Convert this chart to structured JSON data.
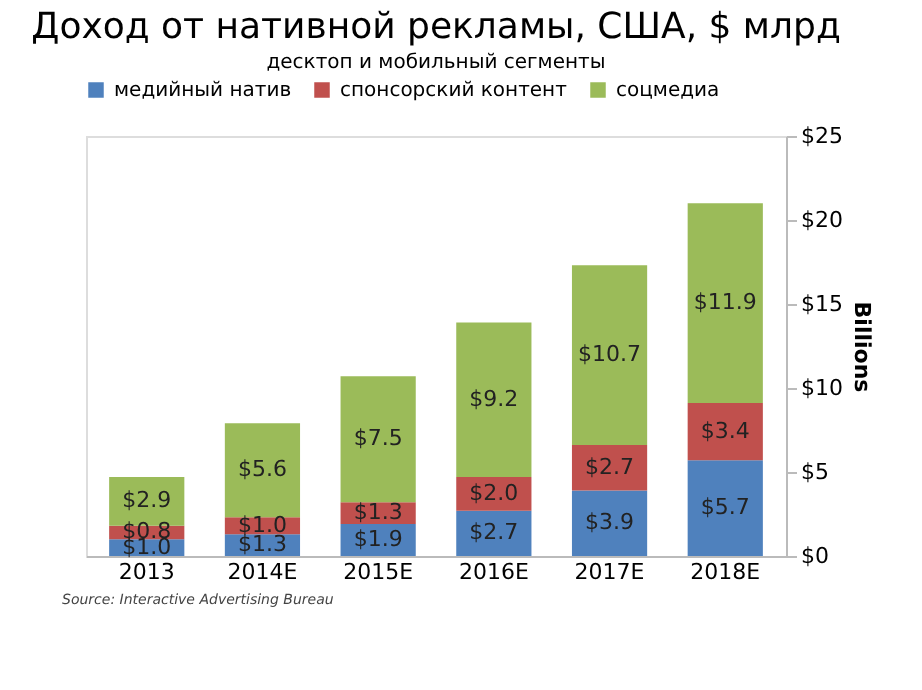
{
  "chart_data": {
    "type": "bar",
    "stacked": true,
    "title": "Доход от нативной рекламы, США, $ млрд",
    "subtitle": "десктоп и мобильный сегменты",
    "ylabel": "Billions",
    "categories": [
      "2013",
      "2014E",
      "2015E",
      "2016E",
      "2017E",
      "2018E"
    ],
    "series": [
      {
        "name": "медийный натив",
        "color": "#4f81bd",
        "values": [
          1.0,
          1.3,
          1.9,
          2.7,
          3.9,
          5.7
        ]
      },
      {
        "name": "спонсорский контент",
        "color": "#c0504d",
        "values": [
          0.8,
          1.0,
          1.3,
          2.0,
          2.7,
          3.4
        ]
      },
      {
        "name": "соцмедиа",
        "color": "#9bbb59",
        "values": [
          2.9,
          5.6,
          7.5,
          9.2,
          10.7,
          11.9
        ]
      }
    ],
    "ylim": [
      0,
      25
    ],
    "yticks": [
      {
        "value": 0,
        "label": "$0"
      },
      {
        "value": 5,
        "label": "$5"
      },
      {
        "value": 10,
        "label": "$10"
      },
      {
        "value": 15,
        "label": "$15"
      },
      {
        "value": 20,
        "label": "$20"
      },
      {
        "value": 25,
        "label": "$25"
      }
    ],
    "value_labels": [
      [
        "$1.0",
        "$1.3",
        "$1.9",
        "$2.7",
        "$3.9",
        "$5.7"
      ],
      [
        "$0.8",
        "$1.0",
        "$1.3",
        "$2.0",
        "$2.7",
        "$3.4"
      ],
      [
        "$2.9",
        "$5.6",
        "$7.5",
        "$9.2",
        "$10.7",
        "$11.9"
      ]
    ],
    "legend": "top",
    "grid": false,
    "annotations": [
      "Source: Interactive Advertising Bureau"
    ]
  }
}
